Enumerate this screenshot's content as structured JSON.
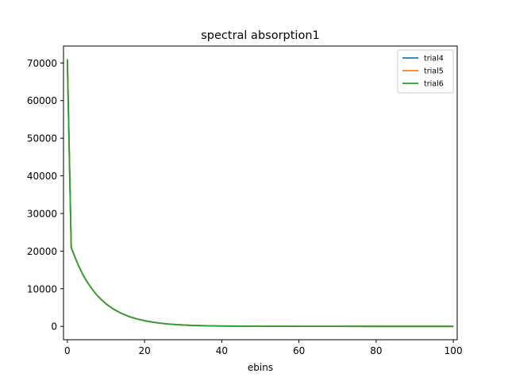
{
  "chart_data": {
    "type": "line",
    "title": "spectral absorption1",
    "xlabel": "ebins",
    "ylabel": "",
    "xlim": [
      -1,
      101
    ],
    "ylim": [
      -3550,
      74500
    ],
    "xticks": [
      0,
      20,
      40,
      60,
      80,
      100
    ],
    "xtick_labels": [
      "0",
      "20",
      "40",
      "60",
      "80",
      "100"
    ],
    "yticks": [
      0,
      10000,
      20000,
      30000,
      40000,
      50000,
      60000,
      70000
    ],
    "ytick_labels": [
      "0",
      "10000",
      "20000",
      "30000",
      "40000",
      "50000",
      "60000",
      "70000"
    ],
    "grid": false,
    "legend_position": "top-right",
    "x": [
      0,
      1,
      2,
      3,
      4,
      5,
      6,
      7,
      8,
      10,
      12,
      14,
      16,
      18,
      20,
      22,
      24,
      26,
      28,
      30,
      32,
      34,
      36,
      38,
      40,
      45,
      50,
      60,
      70,
      80,
      90,
      100
    ],
    "series": [
      {
        "name": "trial4",
        "color": "#1f77b4",
        "values": [
          71000,
          21000,
          18300,
          15900,
          13800,
          12000,
          10500,
          9100,
          7900,
          6000,
          4550,
          3450,
          2600,
          1980,
          1500,
          1140,
          860,
          650,
          490,
          370,
          280,
          210,
          160,
          120,
          90,
          50,
          25,
          8,
          3,
          1,
          0,
          0
        ]
      },
      {
        "name": "trial5",
        "color": "#ff7f0e",
        "values": [
          71000,
          21000,
          18300,
          15900,
          13800,
          12000,
          10500,
          9100,
          7900,
          6000,
          4550,
          3450,
          2600,
          1980,
          1500,
          1140,
          860,
          650,
          490,
          370,
          280,
          210,
          160,
          120,
          90,
          50,
          25,
          8,
          3,
          1,
          0,
          0
        ]
      },
      {
        "name": "trial6",
        "color": "#2ca02c",
        "values": [
          71000,
          21000,
          18300,
          15900,
          13800,
          12000,
          10500,
          9100,
          7900,
          6000,
          4550,
          3450,
          2600,
          1980,
          1500,
          1140,
          860,
          650,
          490,
          370,
          280,
          210,
          160,
          120,
          90,
          50,
          25,
          8,
          3,
          1,
          0,
          0
        ]
      }
    ]
  }
}
